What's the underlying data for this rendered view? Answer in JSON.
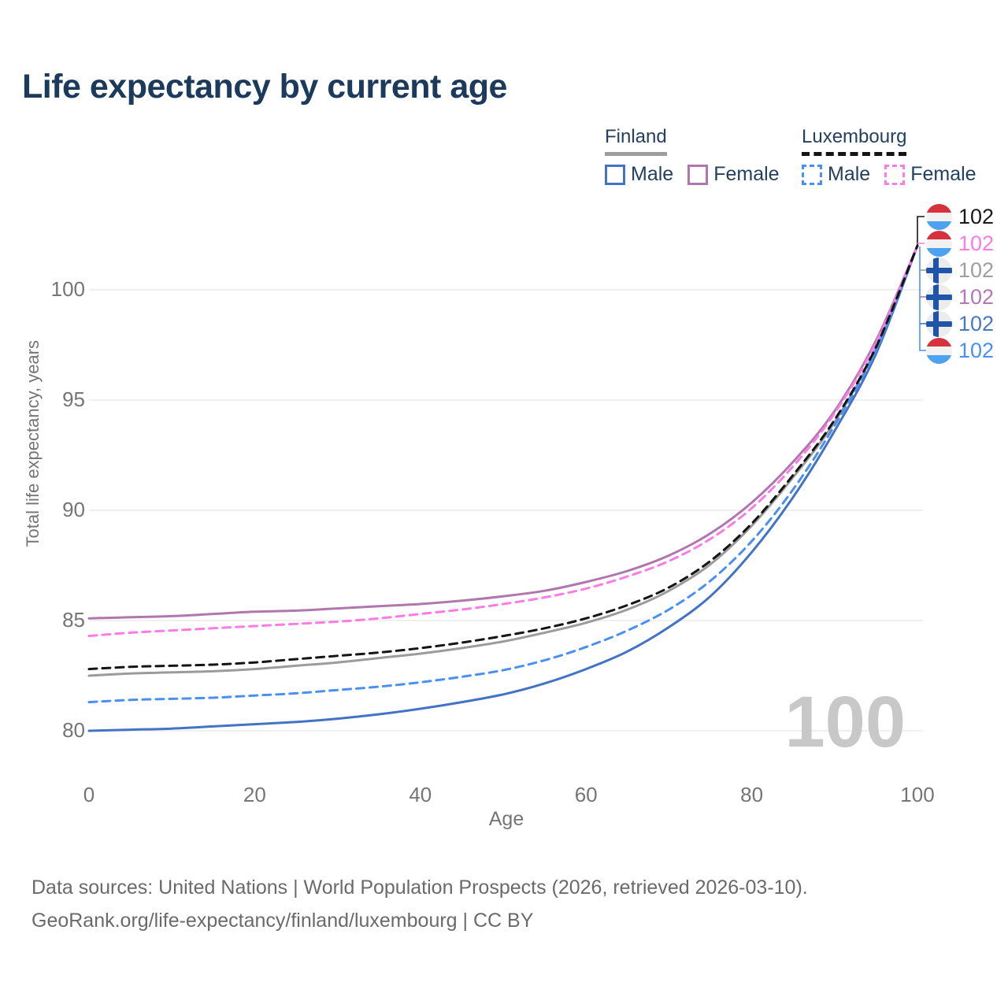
{
  "header": {
    "title": "Life expectancy by current age"
  },
  "legend": {
    "finland": {
      "label": "Finland",
      "male_label": "Male",
      "female_label": "Female"
    },
    "luxembourg": {
      "label": "Luxembourg",
      "male_label": "Male",
      "female_label": "Female"
    }
  },
  "chart": {
    "y_axis_label": "Total life expectancy, years",
    "x_axis_label": "Age",
    "watermark": "100"
  },
  "colors": {
    "title_text": "#1b3a5c",
    "legend_text": "#24405e",
    "axis_text": "#757575",
    "grid": "#e8e8e8",
    "watermark": "#c8c8c8",
    "footer_text": "#6a6a6a",
    "underline_finland": "#9e9e9e",
    "underline_luxembourg": "#141414",
    "lu_red": "#d6323e",
    "lu_white": "#f2f2f2",
    "lu_blue": "#4da3f2",
    "fi_bg": "#ececec",
    "fi_cross": "#1e55a8"
  },
  "chart_data": {
    "type": "line",
    "title": "Life expectancy by current age",
    "xlabel": "Age",
    "ylabel": "Total life expectancy, years",
    "x_ticks": [
      0,
      20,
      40,
      60,
      80,
      100
    ],
    "y_ticks": [
      80,
      85,
      90,
      95,
      100
    ],
    "xlim": [
      0,
      100
    ],
    "ylim": [
      78,
      103.5
    ],
    "grid": "horizontal",
    "legend_position": "top-right",
    "x": [
      0,
      5,
      10,
      15,
      20,
      25,
      30,
      35,
      40,
      45,
      50,
      55,
      60,
      65,
      70,
      75,
      80,
      85,
      90,
      95,
      100
    ],
    "series": [
      {
        "name": "Luxembourg",
        "sex": "Both",
        "style": "dashed",
        "color": "#141414",
        "label_color": "#1a1a1a",
        "flag": "lu",
        "end_value": 102,
        "end_label": "102",
        "values": [
          82.8,
          82.9,
          82.95,
          83.0,
          83.1,
          83.25,
          83.4,
          83.55,
          83.75,
          84.0,
          84.3,
          84.65,
          85.1,
          85.7,
          86.5,
          87.7,
          89.4,
          91.6,
          94.1,
          97.4,
          102
        ]
      },
      {
        "name": "Luxembourg Female",
        "sex": "Female",
        "style": "dashed",
        "color": "#fb7ce4",
        "label_color": "#fb7ce4",
        "flag": "lu",
        "end_value": 102,
        "end_label": "102",
        "values": [
          84.3,
          84.45,
          84.55,
          84.65,
          84.75,
          84.85,
          84.95,
          85.1,
          85.3,
          85.5,
          85.75,
          86.05,
          86.45,
          87.0,
          87.7,
          88.7,
          90.1,
          92.0,
          94.4,
          97.6,
          102
        ]
      },
      {
        "name": "Finland",
        "sex": "Both",
        "style": "solid",
        "color": "#9b9b9b",
        "label_color": "#9e9e9e",
        "flag": "fi",
        "end_value": 102,
        "end_label": "102",
        "values": [
          82.5,
          82.6,
          82.65,
          82.7,
          82.8,
          82.95,
          83.1,
          83.3,
          83.5,
          83.75,
          84.05,
          84.45,
          84.9,
          85.5,
          86.35,
          87.55,
          89.3,
          91.5,
          94.0,
          97.35,
          102
        ]
      },
      {
        "name": "Finland Female",
        "sex": "Female",
        "style": "solid",
        "color": "#b077af",
        "label_color": "#b279b2",
        "flag": "fi",
        "end_value": 102,
        "end_label": "102",
        "values": [
          85.1,
          85.15,
          85.2,
          85.3,
          85.4,
          85.45,
          85.55,
          85.65,
          85.75,
          85.9,
          86.1,
          86.35,
          86.75,
          87.25,
          87.95,
          88.95,
          90.35,
          92.2,
          94.5,
          97.7,
          102
        ]
      },
      {
        "name": "Finland Male",
        "sex": "Male",
        "style": "solid",
        "color": "#4273c4",
        "label_color": "#4a79c2",
        "flag": "fi",
        "end_value": 102,
        "end_label": "102",
        "values": [
          80.0,
          80.05,
          80.1,
          80.2,
          80.3,
          80.4,
          80.55,
          80.75,
          81.0,
          81.3,
          81.65,
          82.15,
          82.8,
          83.6,
          84.7,
          86.1,
          88.1,
          90.6,
          93.6,
          97.1,
          102
        ]
      },
      {
        "name": "Luxembourg Male",
        "sex": "Male",
        "style": "dashed",
        "color": "#4a8ff2",
        "label_color": "#4a8ff2",
        "flag": "lu",
        "end_value": 102,
        "end_label": "102",
        "values": [
          81.3,
          81.4,
          81.45,
          81.5,
          81.6,
          81.7,
          81.85,
          82.0,
          82.2,
          82.45,
          82.75,
          83.2,
          83.8,
          84.55,
          85.5,
          86.8,
          88.6,
          90.95,
          93.85,
          97.25,
          102
        ]
      }
    ],
    "annotations": {
      "watermark_age": "100"
    }
  },
  "footer": {
    "line1": "Data sources: United Nations | World Population Prospects (2026, retrieved 2026-03-10).",
    "line2": "GeoRank.org/life-expectancy/finland/luxembourg | CC BY"
  }
}
